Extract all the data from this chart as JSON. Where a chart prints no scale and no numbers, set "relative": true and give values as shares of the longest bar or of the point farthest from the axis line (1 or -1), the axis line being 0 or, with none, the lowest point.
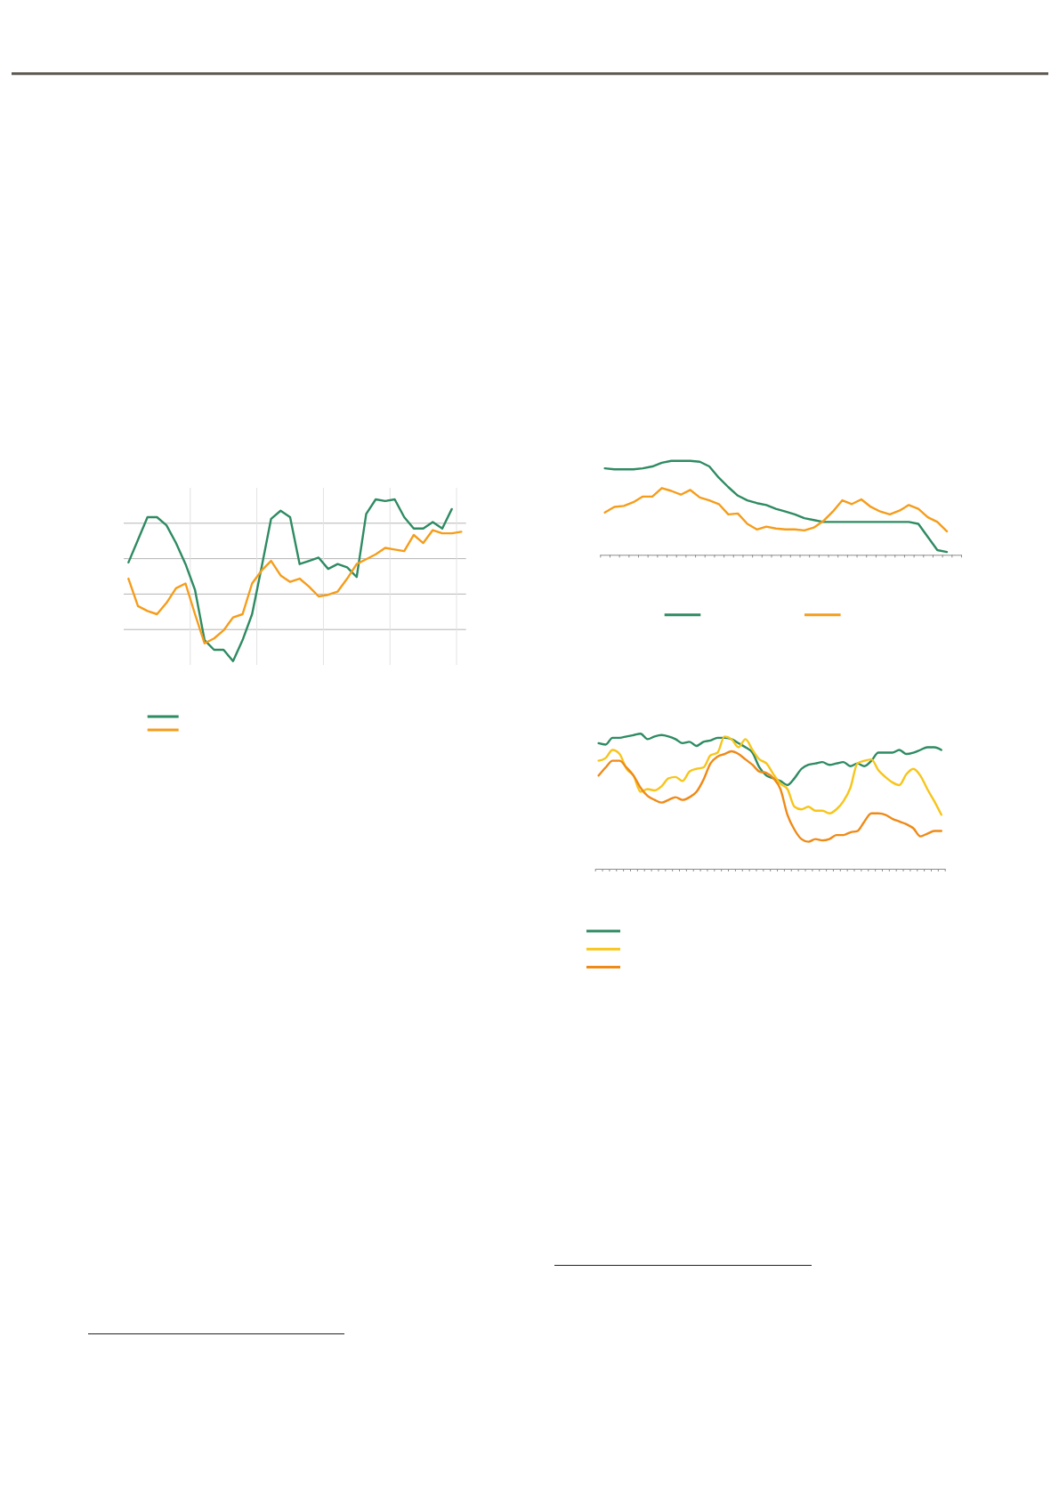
{
  "chart_data": [
    {
      "type": "line",
      "relative": true,
      "grid": true,
      "categories": [
        null,
        null,
        null,
        null,
        null,
        null,
        null,
        null,
        null,
        null,
        null,
        null,
        null,
        null,
        null,
        null,
        null,
        null,
        null,
        null,
        null,
        null,
        null,
        null,
        null,
        null,
        null,
        null,
        null,
        null,
        null,
        null,
        null,
        null,
        null,
        null
      ],
      "series": [
        {
          "color": "#2e8b62",
          "values": [
            0.61,
            0.75,
            0.89,
            0.89,
            0.84,
            0.73,
            0.6,
            0.44,
            0.13,
            0.07,
            0.07,
            0,
            0.13,
            0.29,
            0.58,
            0.88,
            0.93,
            0.89,
            0.6,
            0.62,
            0.64,
            0.57,
            0.6,
            0.58,
            0.52,
            0.91,
            1,
            0.99,
            1,
            0.89,
            0.82,
            0.82,
            0.86,
            0.82,
            0.94,
            null
          ]
        },
        {
          "color": "#f59d1b",
          "values": [
            0.51,
            0.34,
            0.31,
            0.29,
            0.36,
            0.45,
            0.48,
            0.29,
            0.11,
            0.14,
            0.19,
            0.27,
            0.29,
            0.48,
            0.56,
            0.62,
            0.53,
            0.49,
            0.51,
            0.46,
            0.4,
            0.41,
            0.43,
            0.51,
            0.6,
            0.63,
            0.66,
            0.7,
            0.69,
            0.68,
            0.78,
            0.73,
            0.81,
            0.79,
            0.79,
            0.8
          ]
        }
      ]
    },
    {
      "type": "line",
      "relative": true,
      "categories": [
        null,
        null,
        null,
        null,
        null,
        null,
        null,
        null,
        null,
        null,
        null,
        null,
        null,
        null,
        null,
        null,
        null,
        null,
        null,
        null,
        null,
        null,
        null,
        null,
        null,
        null,
        null,
        null,
        null,
        null,
        null,
        null,
        null,
        null,
        null,
        null,
        null,
        null
      ],
      "series": [
        {
          "color": "#2e8b62",
          "values": [
            0.92,
            0.91,
            0.91,
            0.91,
            0.92,
            0.94,
            0.98,
            1,
            1,
            1,
            0.99,
            0.94,
            0.82,
            0.72,
            0.63,
            0.58,
            0.55,
            0.53,
            0.49,
            0.46,
            0.43,
            0.39,
            0.37,
            0.35,
            0.35,
            0.35,
            0.35,
            0.35,
            0.35,
            0.35,
            0.35,
            0.35,
            0.35,
            0.33,
            0.19,
            0.05,
            0.03,
            null
          ]
        },
        {
          "color": "#f59d1b",
          "values": [
            0.45,
            0.51,
            0.52,
            0.56,
            0.62,
            0.62,
            0.71,
            0.68,
            0.64,
            0.69,
            0.61,
            0.58,
            0.54,
            0.43,
            0.44,
            0.33,
            0.27,
            0.3,
            0.28,
            0.27,
            0.27,
            0.26,
            0.29,
            0.36,
            0.46,
            0.58,
            0.54,
            0.59,
            0.51,
            0.46,
            0.43,
            0.47,
            0.53,
            0.49,
            0.4,
            0.35,
            0.25,
            null
          ]
        }
      ]
    },
    {
      "type": "line",
      "relative": true,
      "categories": [
        null,
        null,
        null,
        null,
        null,
        null,
        null,
        null,
        null,
        null,
        null,
        null,
        null,
        null,
        null,
        null,
        null,
        null,
        null,
        null,
        null,
        null,
        null,
        null,
        null,
        null,
        null,
        null,
        null,
        null,
        null,
        null,
        null,
        null,
        null,
        null,
        null,
        null,
        null,
        null,
        null,
        null,
        null,
        null,
        null,
        null,
        null,
        null,
        null,
        null
      ],
      "series": [
        {
          "color": "#2e8b62",
          "values": [
            0.93,
            0.92,
            0.97,
            0.97,
            0.98,
            0.99,
            1,
            0.96,
            0.98,
            0.99,
            0.98,
            0.96,
            0.93,
            0.94,
            0.91,
            0.94,
            0.95,
            0.97,
            0.97,
            0.96,
            0.93,
            0.9,
            0.86,
            0.75,
            0.69,
            0.67,
            0.65,
            0.62,
            0.67,
            0.74,
            0.77,
            0.78,
            0.79,
            0.77,
            0.78,
            0.79,
            0.76,
            0.78,
            0.76,
            0.8,
            0.86,
            0.86,
            0.86,
            0.88,
            0.85,
            0.86,
            0.88,
            0.9,
            0.9,
            0.88
          ]
        },
        {
          "color": "#f7c51a",
          "values": [
            0.8,
            0.82,
            0.88,
            0.85,
            0.74,
            0.69,
            0.57,
            0.59,
            0.58,
            0.61,
            0.67,
            0.68,
            0.65,
            0.72,
            0.74,
            0.75,
            0.84,
            0.86,
            0.98,
            0.96,
            0.9,
            0.96,
            0.88,
            0.81,
            0.78,
            0.7,
            0.63,
            0.59,
            0.46,
            0.44,
            0.46,
            0.43,
            0.43,
            0.41,
            0.44,
            0.5,
            0.6,
            0.78,
            0.8,
            0.81,
            0.73,
            0.68,
            0.64,
            0.62,
            0.7,
            0.74,
            0.69,
            0.59,
            0.5,
            0.4
          ]
        },
        {
          "color": "#ef8a17",
          "values": [
            0.69,
            0.75,
            0.8,
            0.8,
            0.75,
            0.69,
            0.6,
            0.54,
            0.51,
            0.49,
            0.51,
            0.53,
            0.51,
            0.53,
            0.57,
            0.66,
            0.78,
            0.83,
            0.85,
            0.87,
            0.85,
            0.81,
            0.77,
            0.72,
            0.71,
            0.67,
            0.59,
            0.4,
            0.29,
            0.22,
            0.2,
            0.22,
            0.21,
            0.22,
            0.25,
            0.25,
            0.27,
            0.28,
            0.35,
            0.41,
            0.41,
            0.4,
            0.37,
            0.35,
            0.33,
            0.3,
            0.24,
            0.26,
            0.28,
            0.28
          ]
        }
      ]
    }
  ]
}
